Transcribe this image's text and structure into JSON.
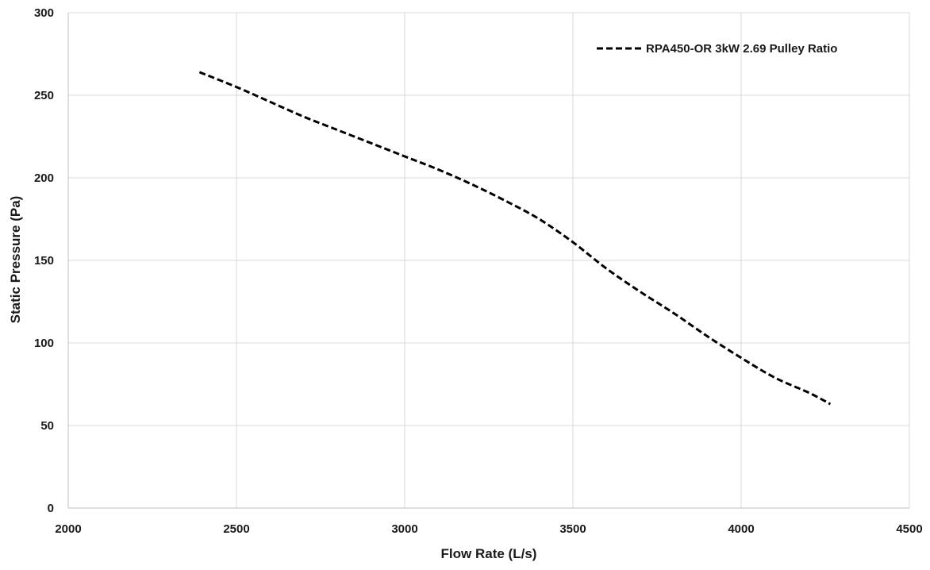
{
  "chart_data": {
    "type": "line",
    "title": "",
    "xlabel": "Flow Rate (L/s)",
    "ylabel": "Static Pressure (Pa)",
    "xlim": [
      2000,
      4500
    ],
    "ylim": [
      0,
      300
    ],
    "x_ticks": [
      2000,
      2500,
      3000,
      3500,
      4000,
      4500
    ],
    "y_ticks": [
      0,
      50,
      100,
      150,
      200,
      250,
      300
    ],
    "grid": true,
    "legend_position": "top-right",
    "series": [
      {
        "name": "RPA450-OR 3kW 2.69 Pulley Ratio",
        "color": "#000000",
        "line_style": "dashed",
        "x": [
          2390,
          2500,
          2600,
          2700,
          2800,
          2900,
          3000,
          3100,
          3200,
          3300,
          3400,
          3500,
          3600,
          3700,
          3800,
          3900,
          4000,
          4100,
          4200,
          4265
        ],
        "y": [
          264,
          255,
          246,
          237,
          229,
          221,
          213,
          205,
          196,
          186,
          175,
          161,
          145,
          131,
          118,
          104,
          91,
          79,
          70,
          63
        ]
      }
    ]
  }
}
